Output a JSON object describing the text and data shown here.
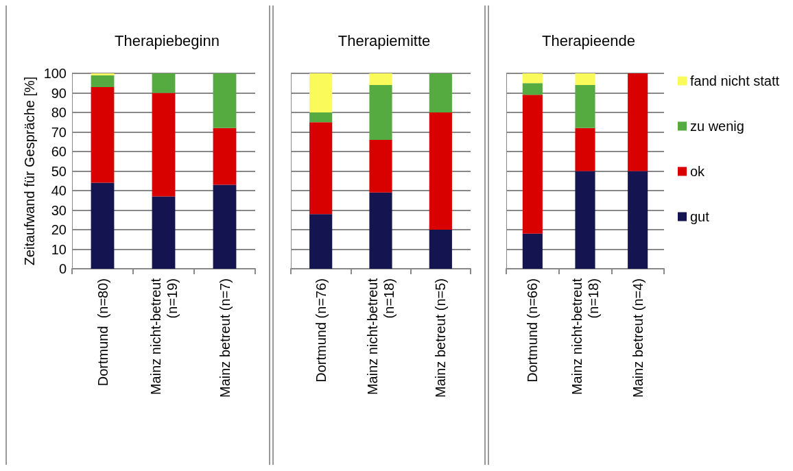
{
  "chart_data": [
    {
      "type": "bar",
      "stacked": true,
      "title": "Therapiebeginn",
      "ylabel": "Zeitaufwand für Gespräche [%]",
      "categories": [
        "Dortmund  (n=80)",
        "Mainz nicht-betreut\n(n=19)",
        "Mainz betreut (n=7)"
      ],
      "ylim": [
        0,
        100
      ],
      "yticks": [
        0,
        10,
        20,
        30,
        40,
        50,
        60,
        70,
        80,
        90,
        100
      ],
      "grid": "y",
      "legend": false,
      "series": [
        {
          "color": "#141450",
          "values": [
            44,
            37,
            43
          ]
        },
        {
          "color": "#d90000",
          "values": [
            49,
            53,
            29
          ]
        },
        {
          "color": "#55ab40",
          "values": [
            6,
            10,
            28
          ]
        },
        {
          "color": "#fafa5a",
          "values": [
            1,
            0,
            0
          ]
        }
      ]
    },
    {
      "type": "bar",
      "stacked": true,
      "title": "Therapiemitte",
      "categories": [
        "Dortmund (n=76)",
        "Mainz nicht-betreut\n(n=18)",
        "Mainz betreut (n=5)"
      ],
      "ylim": [
        0,
        100
      ],
      "yticks": [
        0,
        10,
        20,
        30,
        40,
        50,
        60,
        70,
        80,
        90,
        100
      ],
      "grid": "y",
      "legend": false,
      "tick_labels": "x",
      "series": [
        {
          "color": "#141450",
          "values": [
            28,
            39,
            20
          ]
        },
        {
          "color": "#d90000",
          "values": [
            47,
            27,
            60
          ]
        },
        {
          "color": "#55ab40",
          "values": [
            5,
            28,
            20
          ]
        },
        {
          "color": "#fafa5a",
          "values": [
            20,
            6,
            0
          ]
        }
      ]
    },
    {
      "type": "bar",
      "stacked": true,
      "title": "Therapieende",
      "categories": [
        "Dortmund (n=66)",
        "Mainz nicht-betreut\n(n=18)",
        "Mainz betreut (n=4)"
      ],
      "ylim": [
        0,
        100
      ],
      "yticks": [
        0,
        10,
        20,
        30,
        40,
        50,
        60,
        70,
        80,
        90,
        100
      ],
      "grid": "y",
      "legend": "right",
      "tick_labels": "x",
      "series": [
        {
          "name": "gut",
          "color": "#141450",
          "values": [
            18,
            50,
            50
          ]
        },
        {
          "name": "ok",
          "color": "#d90000",
          "values": [
            71,
            22,
            50
          ]
        },
        {
          "name": "zu wenig",
          "color": "#55ab40",
          "values": [
            6,
            22,
            0
          ]
        },
        {
          "name": "fand nicht statt",
          "color": "#fafa5a",
          "values": [
            5,
            6,
            0
          ]
        }
      ]
    }
  ]
}
